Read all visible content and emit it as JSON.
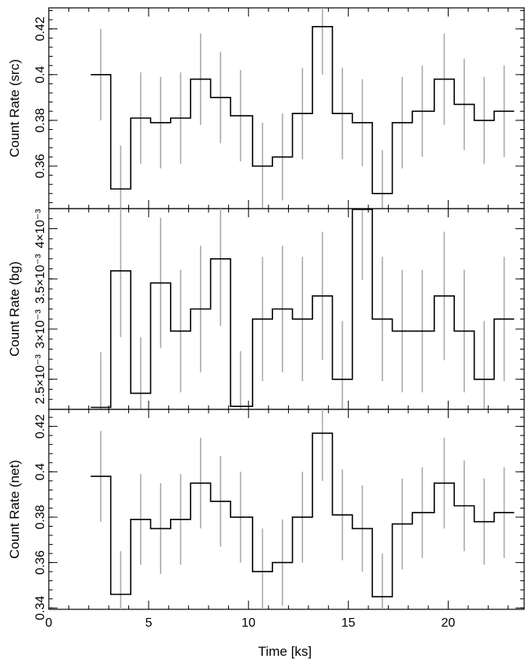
{
  "chart_data": {
    "type": "line",
    "subtype": "step-histogram-with-error-bars",
    "x_label": "Time [ks]",
    "x_ticks": [
      "0",
      "5",
      "10",
      "15",
      "20"
    ],
    "xlim": [
      0,
      23.8
    ],
    "bin_centers": [
      2.6,
      3.6,
      4.6,
      5.6,
      6.6,
      7.6,
      8.6,
      9.6,
      10.7,
      11.7,
      12.7,
      13.7,
      14.7,
      15.7,
      16.7,
      17.7,
      18.7,
      19.8,
      20.8,
      21.8,
      22.8
    ],
    "bin_edges": [
      2.1,
      3.1,
      4.1,
      5.1,
      6.1,
      7.1,
      8.1,
      9.1,
      10.2,
      11.2,
      12.2,
      13.2,
      14.2,
      15.2,
      16.2,
      17.2,
      18.2,
      19.3,
      20.3,
      21.3,
      22.3,
      23.3
    ],
    "colors": {
      "step": "#000000",
      "errorbar": "#aaaaaa",
      "frame": "#000000"
    },
    "panels": [
      {
        "ylabel": "Count Rate (src)",
        "ylim": [
          0.3414,
          0.4292
        ],
        "y_ticks": [
          {
            "value": 0.36,
            "label": "0.36"
          },
          {
            "value": 0.38,
            "label": "0.38"
          },
          {
            "value": 0.4,
            "label": "0.4"
          },
          {
            "value": 0.42,
            "label": "0.42"
          }
        ],
        "values": [
          0.4,
          0.35,
          0.381,
          0.379,
          0.381,
          0.398,
          0.39,
          0.382,
          0.36,
          0.364,
          0.383,
          0.421,
          0.383,
          0.379,
          0.348,
          0.379,
          0.384,
          0.398,
          0.387,
          0.38,
          0.384
        ],
        "errors": [
          0.02,
          0.019,
          0.02,
          0.02,
          0.02,
          0.02,
          0.02,
          0.02,
          0.019,
          0.019,
          0.02,
          0.021,
          0.02,
          0.019,
          0.019,
          0.02,
          0.02,
          0.02,
          0.02,
          0.019,
          0.02
        ]
      },
      {
        "ylabel": "Count Rate (bg)",
        "ylim": [
          0.0022,
          0.0042
        ],
        "y_ticks": [
          {
            "value": 0.0025,
            "label": "2.5×10⁻³"
          },
          {
            "value": 0.003,
            "label": "3×10⁻³"
          },
          {
            "value": 0.0035,
            "label": "3.5×10⁻³"
          },
          {
            "value": 0.004,
            "label": "4×10⁻³"
          }
        ],
        "values": [
          0.00222,
          0.00358,
          0.00236,
          0.00346,
          0.00298,
          0.0032,
          0.0037,
          0.00223,
          0.0031,
          0.0032,
          0.0031,
          0.00333,
          0.0025,
          0.0042,
          0.0031,
          0.00298,
          0.00298,
          0.00333,
          0.00298,
          0.0025,
          0.0031
        ],
        "errors": [
          0.00055,
          0.00066,
          0.00056,
          0.00065,
          0.00061,
          0.00063,
          0.00067,
          0.00055,
          0.00062,
          0.00063,
          0.00062,
          0.00064,
          0.00058,
          0.00071,
          0.00062,
          0.00061,
          0.00061,
          0.00064,
          0.00061,
          0.00058,
          0.00062
        ]
      },
      {
        "ylabel": "Count Rate (net)",
        "ylim": [
          0.3394,
          0.4275
        ],
        "y_ticks": [
          {
            "value": 0.34,
            "label": "0.34"
          },
          {
            "value": 0.36,
            "label": "0.36"
          },
          {
            "value": 0.38,
            "label": "0.38"
          },
          {
            "value": 0.4,
            "label": "0.4"
          },
          {
            "value": 0.42,
            "label": "0.42"
          }
        ],
        "values": [
          0.398,
          0.346,
          0.379,
          0.375,
          0.379,
          0.395,
          0.387,
          0.38,
          0.356,
          0.36,
          0.38,
          0.417,
          0.381,
          0.375,
          0.345,
          0.377,
          0.382,
          0.395,
          0.385,
          0.378,
          0.382
        ],
        "errors": [
          0.02,
          0.019,
          0.02,
          0.02,
          0.02,
          0.02,
          0.02,
          0.02,
          0.019,
          0.019,
          0.02,
          0.021,
          0.02,
          0.019,
          0.019,
          0.02,
          0.02,
          0.02,
          0.02,
          0.019,
          0.02
        ]
      }
    ]
  }
}
